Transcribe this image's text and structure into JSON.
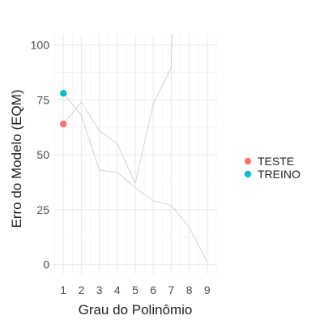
{
  "chart_data": {
    "type": "line",
    "xlabel": "Grau do Polinômio",
    "ylabel": "Erro do Modelo (EQM)",
    "xlim": [
      1,
      9
    ],
    "ylim": [
      0,
      105
    ],
    "x_ticks": [
      1,
      2,
      3,
      4,
      5,
      6,
      7,
      8,
      9
    ],
    "y_ticks": [
      0,
      25,
      50,
      75,
      100
    ],
    "grid": true,
    "legend": "right",
    "series": [
      {
        "name": "TESTE",
        "color": "#f8766d",
        "line_color": "#d3d3d3",
        "x": [
          1,
          2,
          3,
          4,
          5,
          6,
          7,
          7.05
        ],
        "y": [
          64,
          74,
          61,
          55,
          37,
          73,
          90,
          105
        ]
      },
      {
        "name": "TREINO",
        "color": "#00bfc4",
        "line_color": "#d3d3d3",
        "x": [
          1,
          2,
          3,
          4,
          5,
          6,
          7,
          8,
          9
        ],
        "y": [
          78,
          68,
          43,
          42,
          35,
          29,
          27,
          17,
          1
        ]
      }
    ],
    "points": [
      {
        "series": "TESTE",
        "x": 1,
        "y": 64,
        "color": "#f8766d"
      },
      {
        "series": "TREINO",
        "x": 1,
        "y": 78,
        "color": "#00bfc4"
      }
    ]
  }
}
